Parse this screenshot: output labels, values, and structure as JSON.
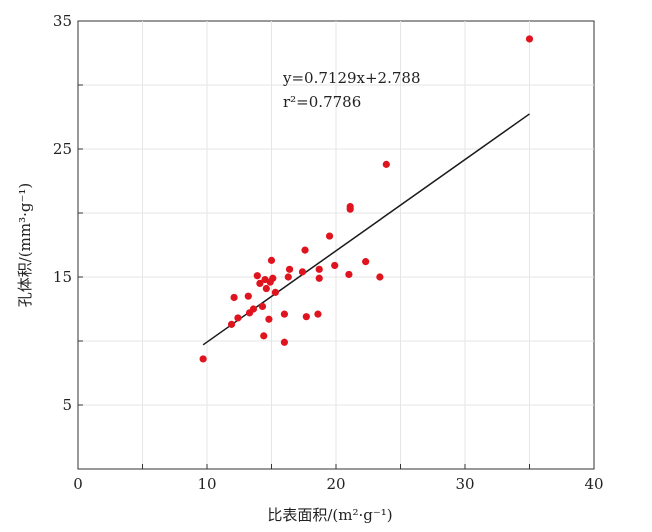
{
  "chart_data": {
    "type": "scatter",
    "title": "",
    "xlabel": "比表面积/(m²·g⁻¹)",
    "ylabel": "孔体积/(mm³·g⁻¹)",
    "xlim": [
      0,
      40
    ],
    "ylim": [
      0,
      35
    ],
    "xticks": [
      0,
      10,
      20,
      30,
      40
    ],
    "yticks": [
      5,
      15,
      25,
      35
    ],
    "grid": true,
    "point_color": "#e0141e",
    "line_color": "#1a1a1a",
    "points": [
      {
        "x": 9.7,
        "y": 8.6
      },
      {
        "x": 11.9,
        "y": 11.3
      },
      {
        "x": 12.1,
        "y": 13.4
      },
      {
        "x": 12.4,
        "y": 11.8
      },
      {
        "x": 13.2,
        "y": 13.5
      },
      {
        "x": 13.3,
        "y": 12.2
      },
      {
        "x": 13.6,
        "y": 12.5
      },
      {
        "x": 13.9,
        "y": 15.1
      },
      {
        "x": 14.1,
        "y": 14.5
      },
      {
        "x": 14.3,
        "y": 12.7
      },
      {
        "x": 14.4,
        "y": 10.4
      },
      {
        "x": 14.5,
        "y": 14.8
      },
      {
        "x": 14.6,
        "y": 14.1
      },
      {
        "x": 14.8,
        "y": 11.7
      },
      {
        "x": 14.9,
        "y": 14.6
      },
      {
        "x": 15.0,
        "y": 16.3
      },
      {
        "x": 15.1,
        "y": 14.9
      },
      {
        "x": 15.3,
        "y": 13.8
      },
      {
        "x": 16.0,
        "y": 12.1
      },
      {
        "x": 16.0,
        "y": 9.9
      },
      {
        "x": 16.3,
        "y": 15.0
      },
      {
        "x": 16.4,
        "y": 15.6
      },
      {
        "x": 17.4,
        "y": 15.4
      },
      {
        "x": 17.6,
        "y": 17.1
      },
      {
        "x": 17.7,
        "y": 11.9
      },
      {
        "x": 18.6,
        "y": 12.1
      },
      {
        "x": 18.7,
        "y": 14.9
      },
      {
        "x": 18.7,
        "y": 15.6
      },
      {
        "x": 19.5,
        "y": 18.2
      },
      {
        "x": 19.9,
        "y": 15.9
      },
      {
        "x": 21.0,
        "y": 15.2
      },
      {
        "x": 21.1,
        "y": 20.3
      },
      {
        "x": 21.1,
        "y": 20.5
      },
      {
        "x": 22.3,
        "y": 16.2
      },
      {
        "x": 23.4,
        "y": 15.0
      },
      {
        "x": 23.9,
        "y": 23.8
      },
      {
        "x": 35.0,
        "y": 33.6
      }
    ],
    "trendline": {
      "slope": 0.7129,
      "intercept": 2.788,
      "x_range": [
        9.7,
        35.0
      ],
      "equation_label": "y=0.7129x+2.788",
      "r2_label": "r²=0.7786"
    }
  }
}
